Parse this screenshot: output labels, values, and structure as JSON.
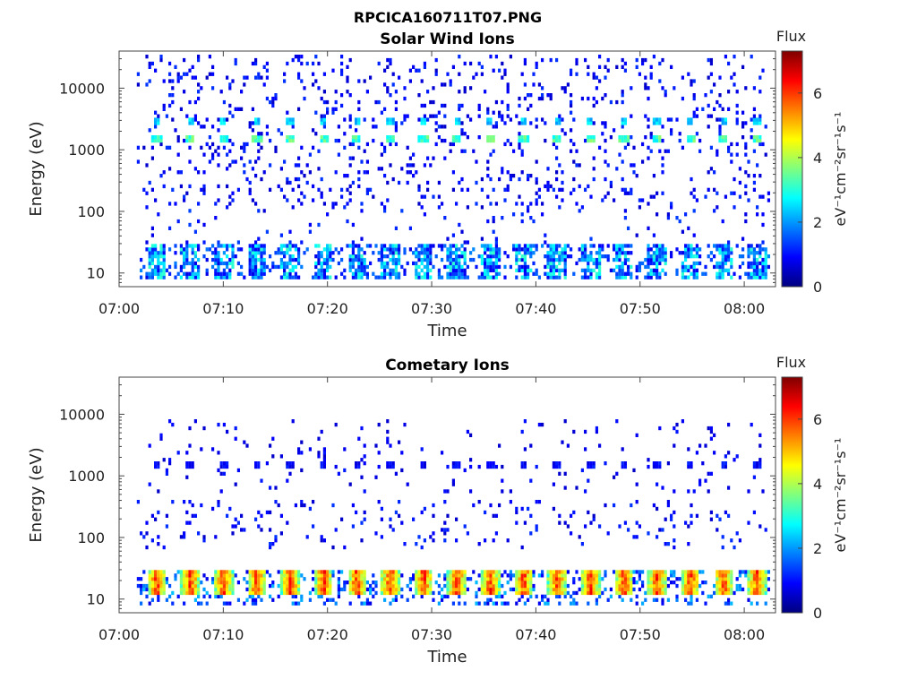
{
  "figure_title": "RPCICA160711T07.PNG",
  "chart_data": [
    {
      "type": "heatmap",
      "title": "Solar Wind Ions",
      "xlabel": "Time",
      "ylabel": "Energy (eV)",
      "x_ticks": [
        "07:00",
        "07:10",
        "07:20",
        "07:30",
        "07:40",
        "07:50",
        "08:00"
      ],
      "x_range": [
        "07:00",
        "08:03"
      ],
      "y_scale": "log",
      "y_ticks": [
        10,
        100,
        1000,
        10000
      ],
      "y_tick_labels": [
        "10",
        "100",
        "1000",
        "10000"
      ],
      "y_range": [
        6,
        40000
      ],
      "colorbar": {
        "label_top": "Flux",
        "label_side": "eV⁻¹cm⁻²sr⁻¹s⁻¹",
        "ticks": [
          0,
          2,
          4,
          6
        ],
        "tick_labels": [
          "0",
          "2",
          "4",
          "6"
        ],
        "range": [
          0,
          7.3
        ],
        "colormap": "jet"
      },
      "sweep_times_min": [
        3.5,
        6.7,
        9.9,
        13.1,
        16.3,
        19.5,
        22.7,
        25.9,
        29.1,
        32.3,
        35.5,
        38.7,
        41.9,
        45.1,
        48.3,
        51.5,
        54.7,
        57.9,
        61.1
      ],
      "features": [
        {
          "name": "proton peak",
          "energy_eV": 1500,
          "flux_level": 3.2
        },
        {
          "name": "alpha peak",
          "energy_eV": 3000,
          "flux_level": 2.4
        },
        {
          "name": "low-energy band",
          "energy_eV": 20,
          "flux_level": 1.7
        }
      ]
    },
    {
      "type": "heatmap",
      "title": "Cometary Ions",
      "xlabel": "Time",
      "ylabel": "Energy (eV)",
      "x_ticks": [
        "07:00",
        "07:10",
        "07:20",
        "07:30",
        "07:40",
        "07:50",
        "08:00"
      ],
      "x_range": [
        "07:00",
        "08:03"
      ],
      "y_scale": "log",
      "y_ticks": [
        10,
        100,
        1000,
        10000
      ],
      "y_tick_labels": [
        "10",
        "100",
        "1000",
        "10000"
      ],
      "y_range": [
        6,
        40000
      ],
      "colorbar": {
        "label_top": "Flux",
        "label_side": "eV⁻¹cm⁻²sr⁻¹s⁻¹",
        "ticks": [
          0,
          2,
          4,
          6
        ],
        "tick_labels": [
          "0",
          "2",
          "4",
          "6"
        ],
        "range": [
          0,
          7.3
        ],
        "colormap": "jet"
      },
      "sweep_times_min": [
        3.5,
        6.7,
        9.9,
        13.1,
        16.3,
        19.5,
        22.7,
        25.9,
        29.1,
        32.3,
        35.5,
        38.7,
        41.9,
        45.1,
        48.3,
        51.5,
        54.7,
        57.9,
        61.1
      ],
      "features": [
        {
          "name": "low-energy cometary band",
          "energy_eV": 20,
          "flux_level": 4.8
        },
        {
          "name": "mid-energy scatter",
          "energy_eV": 1500,
          "flux_level": 0.8
        }
      ]
    }
  ]
}
